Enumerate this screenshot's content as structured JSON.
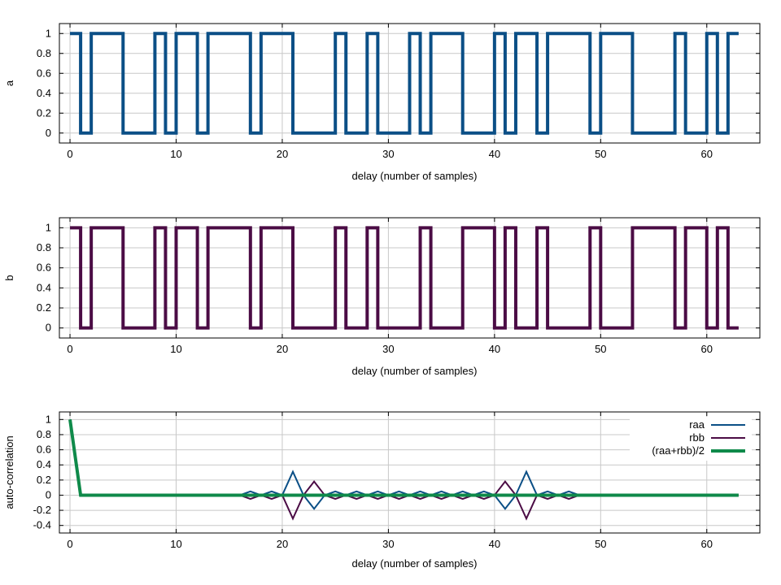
{
  "chart_data": [
    {
      "type": "line",
      "id": "a",
      "ylabel": "a",
      "xlabel": "delay (number of samples)",
      "xlim": [
        -1,
        65
      ],
      "ylim": [
        -0.1,
        1.1
      ],
      "xticks": [
        0,
        10,
        20,
        30,
        40,
        50,
        60
      ],
      "yticks": [
        "0",
        "0.2",
        "0.4",
        "0.6",
        "0.8",
        "1"
      ],
      "ytick_values": [
        0,
        0.2,
        0.4,
        0.6,
        0.8,
        1
      ],
      "grid": true,
      "step": true,
      "series": [
        {
          "color": "#0b4f86",
          "x": [
            0,
            1,
            2,
            3,
            4,
            5,
            6,
            7,
            8,
            9,
            10,
            11,
            12,
            13,
            14,
            15,
            16,
            17,
            18,
            19,
            20,
            21,
            22,
            23,
            24,
            25,
            26,
            27,
            28,
            29,
            30,
            31,
            32,
            33,
            34,
            35,
            36,
            37,
            38,
            39,
            40,
            41,
            42,
            43,
            44,
            45,
            46,
            47,
            48,
            49,
            50,
            51,
            52,
            53,
            54,
            55,
            56,
            57,
            58,
            59,
            60,
            61,
            62,
            63
          ],
          "values": [
            1,
            0,
            1,
            1,
            1,
            0,
            0,
            0,
            1,
            0,
            1,
            1,
            0,
            1,
            1,
            1,
            1,
            0,
            1,
            1,
            1,
            0,
            0,
            0,
            0,
            1,
            0,
            0,
            1,
            0,
            0,
            0,
            1,
            0,
            1,
            1,
            1,
            0,
            0,
            0,
            1,
            0,
            1,
            1,
            0,
            1,
            1,
            1,
            1,
            0,
            1,
            1,
            1,
            0,
            0,
            0,
            0,
            1,
            0,
            0,
            1,
            0,
            1,
            1
          ]
        }
      ]
    },
    {
      "type": "line",
      "id": "b",
      "ylabel": "b",
      "xlabel": "delay (number of samples)",
      "xlim": [
        -1,
        65
      ],
      "ylim": [
        -0.1,
        1.1
      ],
      "xticks": [
        0,
        10,
        20,
        30,
        40,
        50,
        60
      ],
      "yticks": [
        "0",
        "0.2",
        "0.4",
        "0.6",
        "0.8",
        "1"
      ],
      "ytick_values": [
        0,
        0.2,
        0.4,
        0.6,
        0.8,
        1
      ],
      "grid": true,
      "step": true,
      "series": [
        {
          "color": "#4b0c45",
          "x": [
            0,
            1,
            2,
            3,
            4,
            5,
            6,
            7,
            8,
            9,
            10,
            11,
            12,
            13,
            14,
            15,
            16,
            17,
            18,
            19,
            20,
            21,
            22,
            23,
            24,
            25,
            26,
            27,
            28,
            29,
            30,
            31,
            32,
            33,
            34,
            35,
            36,
            37,
            38,
            39,
            40,
            41,
            42,
            43,
            44,
            45,
            46,
            47,
            48,
            49,
            50,
            51,
            52,
            53,
            54,
            55,
            56,
            57,
            58,
            59,
            60,
            61,
            62,
            63
          ],
          "values": [
            1,
            0,
            1,
            1,
            1,
            0,
            0,
            0,
            1,
            0,
            1,
            1,
            0,
            1,
            1,
            1,
            1,
            0,
            1,
            1,
            1,
            0,
            0,
            0,
            0,
            1,
            0,
            0,
            1,
            0,
            0,
            0,
            0,
            1,
            0,
            0,
            0,
            1,
            1,
            1,
            0,
            1,
            0,
            0,
            1,
            0,
            0,
            0,
            0,
            1,
            0,
            0,
            0,
            1,
            1,
            1,
            1,
            0,
            1,
            1,
            0,
            1,
            0,
            0
          ]
        }
      ]
    },
    {
      "type": "line",
      "id": "autocorr",
      "ylabel": "auto-correlation",
      "xlabel": "delay (number of samples)",
      "xlim": [
        -1,
        65
      ],
      "ylim": [
        -0.5,
        1.1
      ],
      "xticks": [
        0,
        10,
        20,
        30,
        40,
        50,
        60
      ],
      "yticks": [
        "-0.4",
        "-0.2",
        "0",
        "0.2",
        "0.4",
        "0.6",
        "0.8",
        "1"
      ],
      "ytick_values": [
        -0.4,
        -0.2,
        0,
        0.2,
        0.4,
        0.6,
        0.8,
        1
      ],
      "grid": true,
      "legend": "top-right",
      "series": [
        {
          "name": "raa",
          "color": "#0b4f86",
          "width": "thin",
          "x": [
            0,
            1,
            15,
            16,
            17,
            18,
            19,
            20,
            21,
            22,
            23,
            24,
            25,
            26,
            27,
            28,
            29,
            30,
            31,
            32,
            33,
            34,
            35,
            36,
            37,
            38,
            39,
            40,
            41,
            42,
            43,
            44,
            45,
            46,
            47,
            48,
            63
          ],
          "values": [
            1,
            0,
            0,
            0,
            0.05,
            0,
            0.05,
            0,
            0.31,
            0,
            -0.18,
            0,
            0.05,
            0,
            0.05,
            0,
            0.05,
            0,
            0.05,
            0,
            0.05,
            0,
            0.05,
            0,
            0.05,
            0,
            0.05,
            0,
            -0.18,
            0,
            0.31,
            0,
            0.05,
            0,
            0.05,
            0,
            0
          ]
        },
        {
          "name": "rbb",
          "color": "#4b0c45",
          "width": "thin",
          "x": [
            0,
            1,
            15,
            16,
            17,
            18,
            19,
            20,
            21,
            22,
            23,
            24,
            25,
            26,
            27,
            28,
            29,
            30,
            31,
            32,
            33,
            34,
            35,
            36,
            37,
            38,
            39,
            40,
            41,
            42,
            43,
            44,
            45,
            46,
            47,
            48,
            63
          ],
          "values": [
            1,
            0,
            0,
            0,
            -0.05,
            0,
            -0.05,
            0,
            -0.31,
            0,
            0.18,
            0,
            -0.05,
            0,
            -0.05,
            0,
            -0.05,
            0,
            -0.05,
            0,
            -0.05,
            0,
            -0.05,
            0,
            -0.05,
            0,
            -0.05,
            0,
            0.18,
            0,
            -0.31,
            0,
            -0.05,
            0,
            -0.05,
            0,
            0
          ]
        },
        {
          "name": "(raa+rbb)/2",
          "color": "#0f8a4a",
          "width": "thick",
          "x": [
            0,
            1,
            63
          ],
          "values": [
            1,
            0,
            0
          ]
        }
      ]
    }
  ]
}
